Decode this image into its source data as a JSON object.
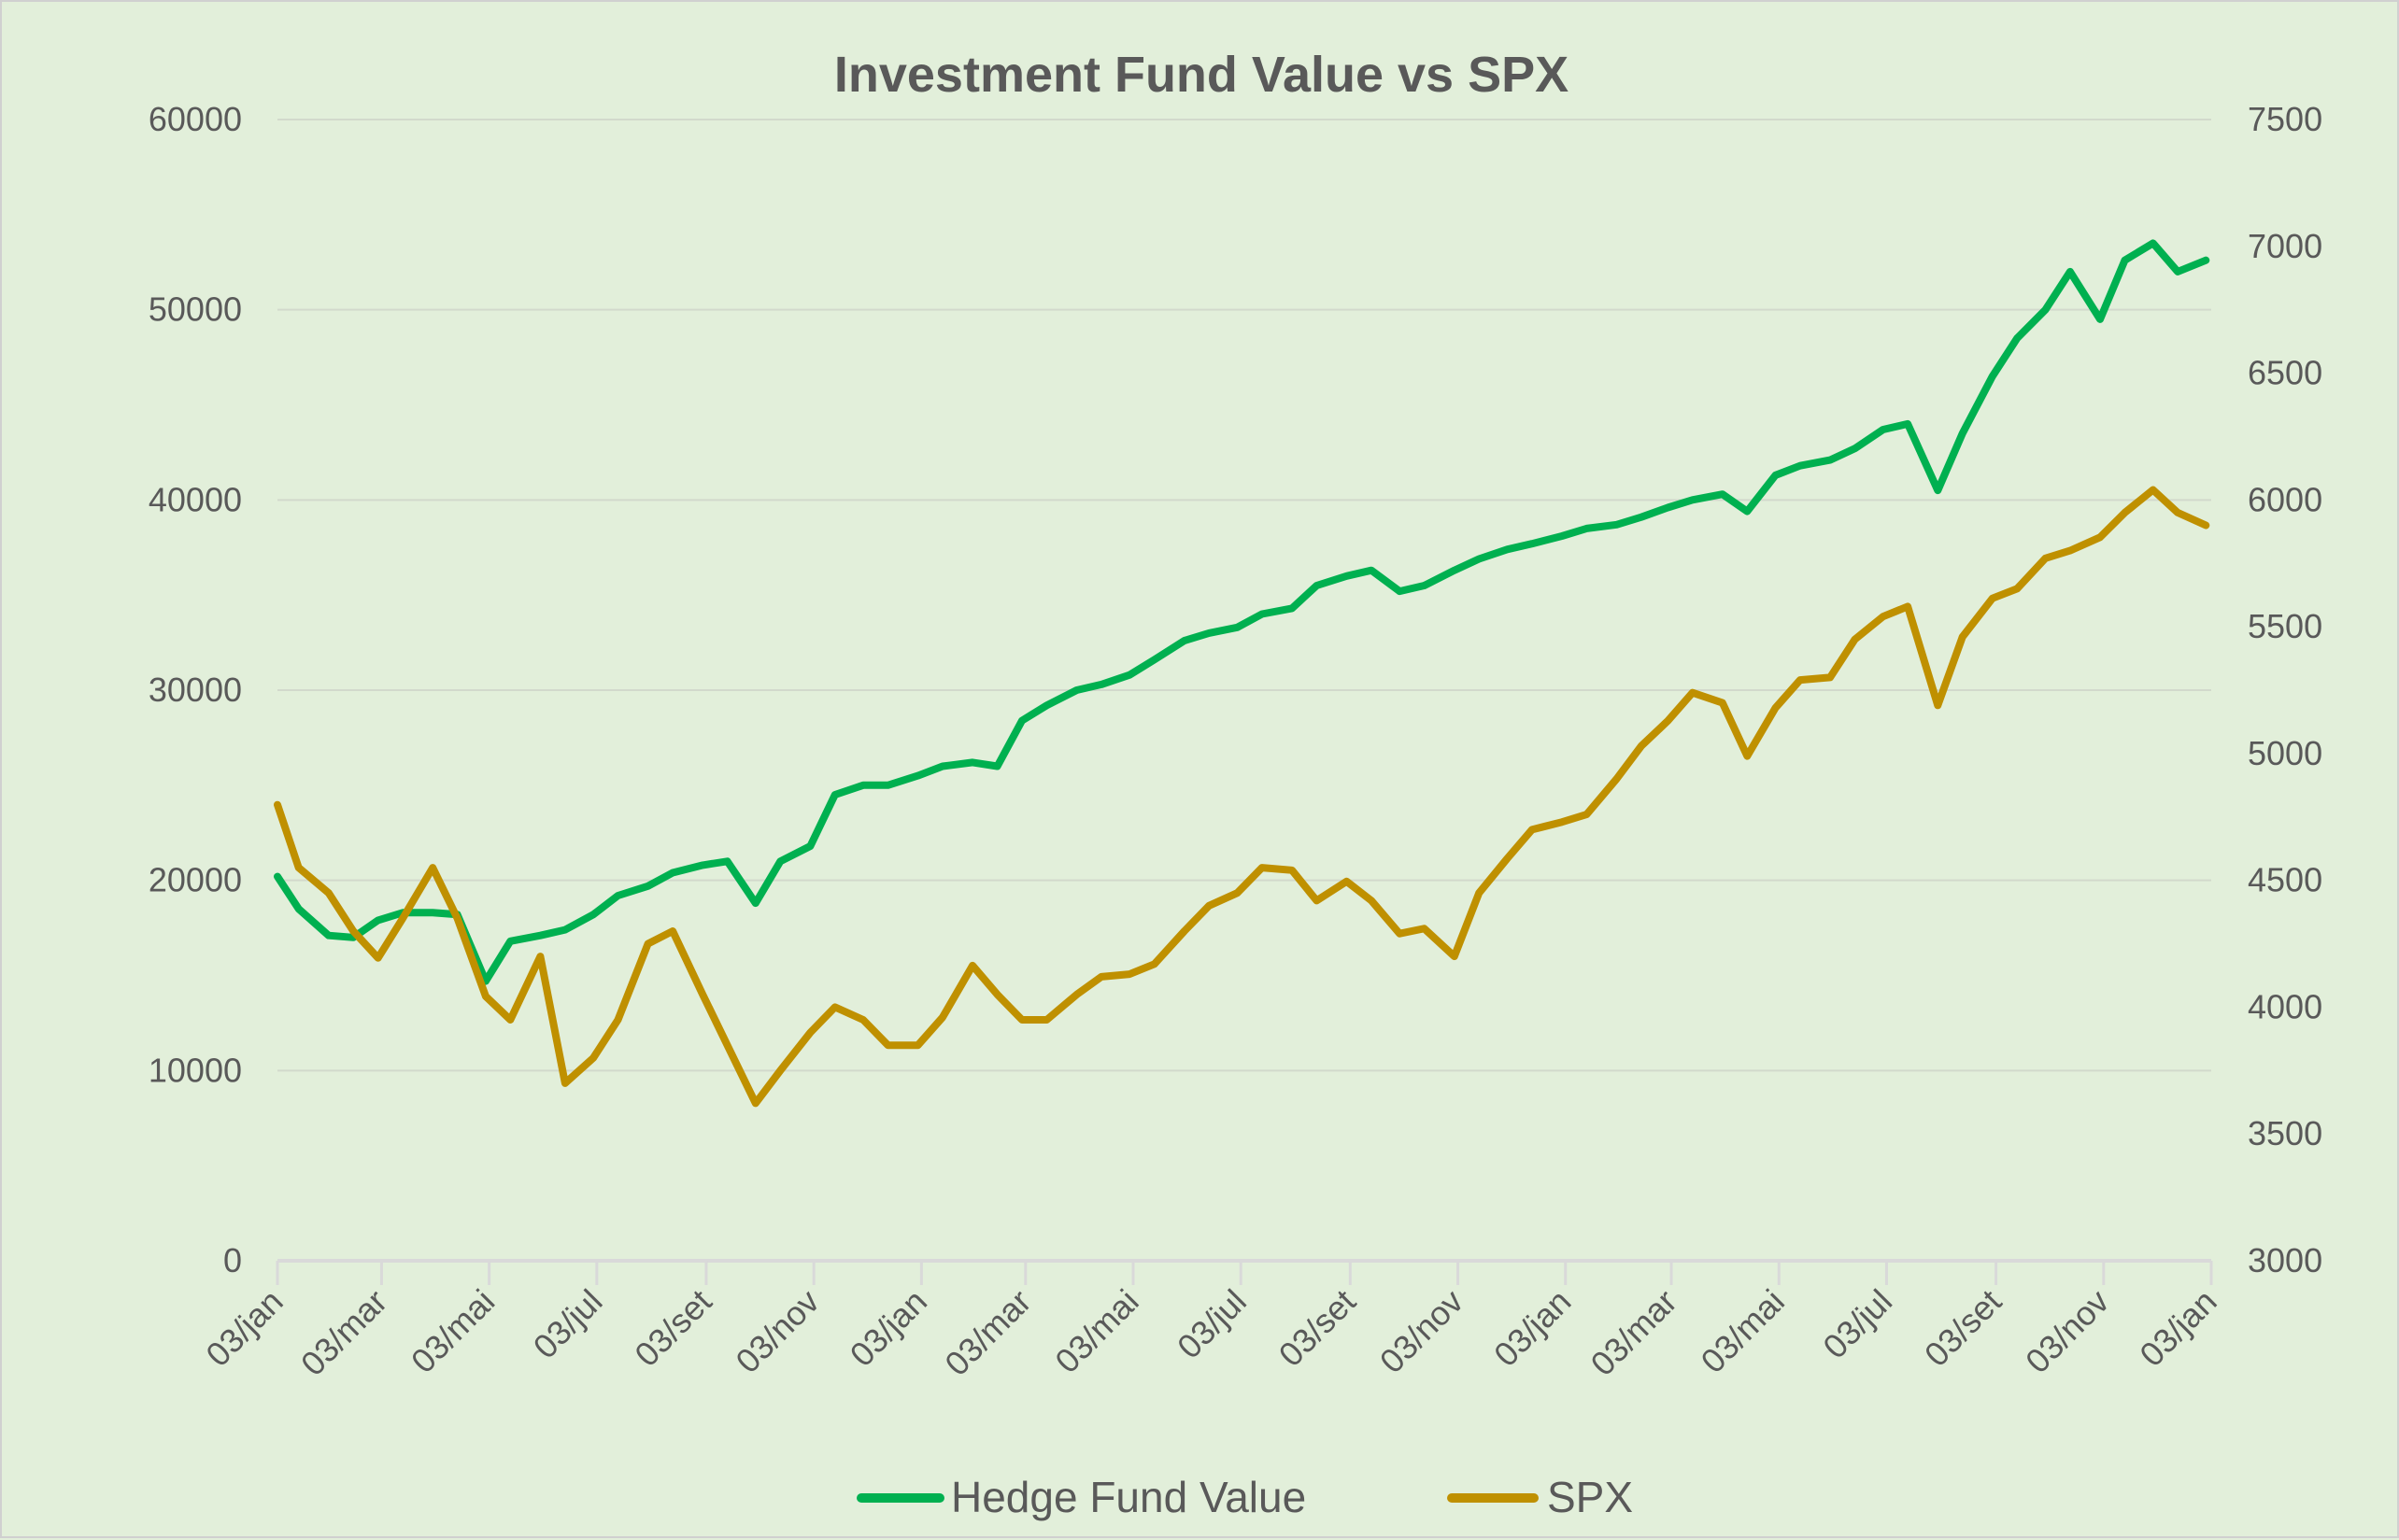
{
  "chart_data": {
    "type": "line",
    "title": "Investment Fund Value vs SPX",
    "grid": true,
    "legend_position": "bottom",
    "y_left": {
      "range": [
        0,
        60000
      ],
      "ticks": [
        "0",
        "10000",
        "20000",
        "30000",
        "40000",
        "50000",
        "60000"
      ]
    },
    "y_right": {
      "range": [
        3000,
        7500
      ],
      "ticks": [
        "3000",
        "3500",
        "4000",
        "4500",
        "5000",
        "5500",
        "6000",
        "6500",
        "7000",
        "7500"
      ]
    },
    "x_range": [
      "2022-01-03",
      "2025-01-03"
    ],
    "x_ticks": [
      {
        "date": "2022-01-03",
        "label": "03/jan"
      },
      {
        "date": "2022-03-03",
        "label": "03/mar"
      },
      {
        "date": "2022-05-03",
        "label": "03/mai"
      },
      {
        "date": "2022-07-03",
        "label": "03/jul"
      },
      {
        "date": "2022-09-03",
        "label": "03/set"
      },
      {
        "date": "2022-11-03",
        "label": "03/nov"
      },
      {
        "date": "2023-01-03",
        "label": "03/jan"
      },
      {
        "date": "2023-03-03",
        "label": "03/mar"
      },
      {
        "date": "2023-05-03",
        "label": "03/mai"
      },
      {
        "date": "2023-07-03",
        "label": "03/jul"
      },
      {
        "date": "2023-09-03",
        "label": "03/set"
      },
      {
        "date": "2023-11-03",
        "label": "03/nov"
      },
      {
        "date": "2024-01-03",
        "label": "03/jan"
      },
      {
        "date": "2024-03-03",
        "label": "03/mar"
      },
      {
        "date": "2024-05-03",
        "label": "03/mai"
      },
      {
        "date": "2024-07-03",
        "label": "03/jul"
      },
      {
        "date": "2024-09-03",
        "label": "03/set"
      },
      {
        "date": "2024-11-03",
        "label": "03/nov"
      },
      {
        "date": "2025-01-03",
        "label": "03/jan"
      }
    ],
    "x": [
      "2022-01-03",
      "2022-01-15",
      "2022-02-01",
      "2022-02-15",
      "2022-03-01",
      "2022-03-15",
      "2022-04-01",
      "2022-04-15",
      "2022-05-01",
      "2022-05-15",
      "2022-06-01",
      "2022-06-15",
      "2022-07-01",
      "2022-07-15",
      "2022-08-01",
      "2022-08-15",
      "2022-09-01",
      "2022-09-15",
      "2022-10-01",
      "2022-10-15",
      "2022-11-01",
      "2022-11-15",
      "2022-12-01",
      "2022-12-15",
      "2023-01-01",
      "2023-01-15",
      "2023-02-01",
      "2023-02-15",
      "2023-03-01",
      "2023-03-15",
      "2023-04-01",
      "2023-04-15",
      "2023-05-01",
      "2023-05-15",
      "2023-06-01",
      "2023-06-15",
      "2023-07-01",
      "2023-07-15",
      "2023-08-01",
      "2023-08-15",
      "2023-09-01",
      "2023-09-15",
      "2023-10-01",
      "2023-10-15",
      "2023-11-01",
      "2023-11-15",
      "2023-12-01",
      "2023-12-15",
      "2024-01-01",
      "2024-01-15",
      "2024-02-01",
      "2024-02-15",
      "2024-03-01",
      "2024-03-15",
      "2024-04-01",
      "2024-04-15",
      "2024-05-01",
      "2024-05-15",
      "2024-06-01",
      "2024-06-15",
      "2024-07-01",
      "2024-07-15",
      "2024-08-01",
      "2024-08-15",
      "2024-09-01",
      "2024-09-15",
      "2024-10-01",
      "2024-10-15",
      "2024-11-01",
      "2024-11-15",
      "2024-12-01",
      "2024-12-15",
      "2024-12-31"
    ],
    "series": [
      {
        "name": "Hedge Fund Value",
        "axis": "left",
        "color": "#00b050",
        "values": [
          20200,
          18500,
          17100,
          17000,
          17900,
          18300,
          18300,
          18200,
          14700,
          16800,
          17100,
          17400,
          18200,
          19200,
          19700,
          20400,
          20800,
          21000,
          18800,
          21000,
          21800,
          24500,
          25000,
          25000,
          25500,
          26000,
          26200,
          26000,
          28400,
          29200,
          30000,
          30300,
          30800,
          31600,
          32600,
          33000,
          33300,
          34000,
          34300,
          35500,
          36000,
          36300,
          35200,
          35500,
          36300,
          36900,
          37400,
          37700,
          38100,
          38500,
          38700,
          39100,
          39600,
          40000,
          40300,
          39400,
          41300,
          41800,
          42100,
          42700,
          43700,
          44000,
          40500,
          43500,
          46500,
          48500,
          50000,
          52000,
          49500,
          52600,
          53500,
          52000,
          52600
        ]
      },
      {
        "name": "SPX",
        "axis": "right",
        "color": "#bf9000",
        "values": [
          4798,
          4550,
          4450,
          4300,
          4194,
          4350,
          4550,
          4350,
          4043,
          3950,
          4200,
          3700,
          3800,
          3950,
          4250,
          4300,
          4050,
          3850,
          3621,
          3750,
          3900,
          4000,
          3950,
          3850,
          3850,
          3960,
          4164,
          4050,
          3950,
          3950,
          4050,
          4120,
          4130,
          4170,
          4300,
          4400,
          4450,
          4550,
          4540,
          4420,
          4496,
          4420,
          4290,
          4310,
          4200,
          4450,
          4586,
          4700,
          4730,
          4760,
          4900,
          5030,
          5129,
          5240,
          5200,
          4990,
          5180,
          5290,
          5300,
          5450,
          5540,
          5580,
          5190,
          5460,
          5612,
          5650,
          5770,
          5800,
          5853,
          5950,
          6040,
          5950,
          5900
        ]
      }
    ]
  }
}
